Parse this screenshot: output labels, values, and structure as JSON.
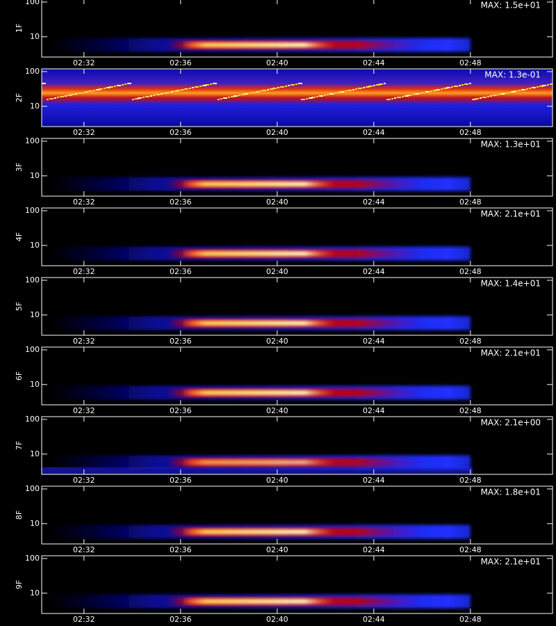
{
  "chart_data": [
    {
      "type": "heatmap",
      "ylabel": "1F",
      "annotation": "MAX: 1.5e+01",
      "yscale": "log",
      "ylim": [
        2.6,
        120
      ],
      "yticks": [
        10,
        100
      ],
      "xlim": [
        150.25,
        171.4
      ],
      "xticks": [
        {
          "value": 152,
          "label": "02:32"
        },
        {
          "value": 156,
          "label": "02:36"
        },
        {
          "value": 160,
          "label": "02:40"
        },
        {
          "value": 164,
          "label": "02:44"
        },
        {
          "value": 168,
          "label": "02:48"
        }
      ]
    },
    {
      "type": "heatmap",
      "ylabel": "2F",
      "annotation": "MAX: 1.3e-01",
      "yscale": "log",
      "ylim": [
        2.6,
        120
      ],
      "yticks": [
        10,
        100
      ],
      "xlim": [
        150.25,
        171.4
      ],
      "xticks": [
        {
          "value": 152,
          "label": "02:32"
        },
        {
          "value": 156,
          "label": "02:36"
        },
        {
          "value": 160,
          "label": "02:40"
        },
        {
          "value": 164,
          "label": "02:44"
        },
        {
          "value": 168,
          "label": "02:48"
        }
      ]
    },
    {
      "type": "heatmap",
      "ylabel": "3F",
      "annotation": "MAX: 1.3e+01",
      "yscale": "log",
      "ylim": [
        2.6,
        120
      ],
      "yticks": [
        10,
        100
      ],
      "xlim": [
        150.25,
        171.4
      ],
      "xticks": [
        {
          "value": 152,
          "label": "02:32"
        },
        {
          "value": 156,
          "label": "02:36"
        },
        {
          "value": 160,
          "label": "02:40"
        },
        {
          "value": 164,
          "label": "02:44"
        },
        {
          "value": 168,
          "label": "02:48"
        }
      ]
    },
    {
      "type": "heatmap",
      "ylabel": "4F",
      "annotation": "MAX: 2.1e+01",
      "yscale": "log",
      "ylim": [
        2.6,
        120
      ],
      "yticks": [
        10,
        100
      ],
      "xlim": [
        150.25,
        171.4
      ],
      "xticks": [
        {
          "value": 152,
          "label": "02:32"
        },
        {
          "value": 156,
          "label": "02:36"
        },
        {
          "value": 160,
          "label": "02:40"
        },
        {
          "value": 164,
          "label": "02:44"
        },
        {
          "value": 168,
          "label": "02:48"
        }
      ]
    },
    {
      "type": "heatmap",
      "ylabel": "5F",
      "annotation": "MAX: 1.4e+01",
      "yscale": "log",
      "ylim": [
        2.6,
        120
      ],
      "yticks": [
        10,
        100
      ],
      "xlim": [
        150.25,
        171.4
      ],
      "xticks": [
        {
          "value": 152,
          "label": "02:32"
        },
        {
          "value": 156,
          "label": "02:36"
        },
        {
          "value": 160,
          "label": "02:40"
        },
        {
          "value": 164,
          "label": "02:44"
        },
        {
          "value": 168,
          "label": "02:48"
        }
      ]
    },
    {
      "type": "heatmap",
      "ylabel": "6F",
      "annotation": "MAX: 2.1e+01",
      "yscale": "log",
      "ylim": [
        2.6,
        120
      ],
      "yticks": [
        10,
        100
      ],
      "xlim": [
        150.25,
        171.4
      ],
      "xticks": [
        {
          "value": 152,
          "label": "02:32"
        },
        {
          "value": 156,
          "label": "02:36"
        },
        {
          "value": 160,
          "label": "02:40"
        },
        {
          "value": 164,
          "label": "02:44"
        },
        {
          "value": 168,
          "label": "02:48"
        }
      ]
    },
    {
      "type": "heatmap",
      "ylabel": "7F",
      "annotation": "MAX: 2.1e+00",
      "yscale": "log",
      "ylim": [
        2.6,
        120
      ],
      "yticks": [
        10,
        100
      ],
      "xlim": [
        150.25,
        171.4
      ],
      "xticks": [
        {
          "value": 152,
          "label": "02:32"
        },
        {
          "value": 156,
          "label": "02:36"
        },
        {
          "value": 160,
          "label": "02:40"
        },
        {
          "value": 164,
          "label": "02:44"
        },
        {
          "value": 168,
          "label": "02:48"
        }
      ]
    },
    {
      "type": "heatmap",
      "ylabel": "8F",
      "annotation": "MAX: 1.8e+01",
      "yscale": "log",
      "ylim": [
        2.6,
        120
      ],
      "yticks": [
        10,
        100
      ],
      "xlim": [
        150.25,
        171.4
      ],
      "xticks": [
        {
          "value": 152,
          "label": "02:32"
        },
        {
          "value": 156,
          "label": "02:36"
        },
        {
          "value": 160,
          "label": "02:40"
        },
        {
          "value": 164,
          "label": "02:44"
        },
        {
          "value": 168,
          "label": "02:48"
        }
      ]
    },
    {
      "type": "heatmap",
      "ylabel": "9F",
      "annotation": "MAX: 2.1e+01",
      "yscale": "log",
      "ylim": [
        2.6,
        120
      ],
      "yticks": [
        10,
        100
      ],
      "xlim": [
        150.25,
        171.4
      ],
      "xticks": [
        {
          "value": 152,
          "label": "02:32"
        },
        {
          "value": 156,
          "label": "02:36"
        },
        {
          "value": 160,
          "label": "02:40"
        },
        {
          "value": 164,
          "label": "02:44"
        },
        {
          "value": 168,
          "label": "02:48"
        }
      ]
    }
  ]
}
